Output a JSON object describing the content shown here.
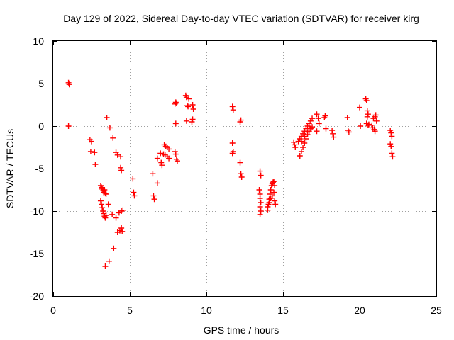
{
  "chart_data": {
    "type": "scatter",
    "title": "Day 129 of 2022, Sidereal Day-to-day VTEC variation (SDTVAR) for receiver kirg",
    "xlabel": "GPS time / hours",
    "ylabel": "SDTVAR / TECUs",
    "xlim": [
      0,
      25
    ],
    "ylim": [
      -20,
      10
    ],
    "xticks": [
      0,
      5,
      10,
      15,
      20,
      25
    ],
    "yticks": [
      -20,
      -15,
      -10,
      -5,
      0,
      5,
      10
    ],
    "grid": true,
    "marker": "plus",
    "series": [
      {
        "name": "SDTVAR",
        "color": "#ff0000",
        "points": [
          [
            1.0,
            5.1
          ],
          [
            1.05,
            4.9
          ],
          [
            1.0,
            0.0
          ],
          [
            2.4,
            -1.6
          ],
          [
            2.5,
            -1.8
          ],
          [
            2.45,
            -3.0
          ],
          [
            2.7,
            -3.1
          ],
          [
            2.75,
            -4.5
          ],
          [
            3.1,
            -7.0
          ],
          [
            3.15,
            -7.2
          ],
          [
            3.2,
            -7.4
          ],
          [
            3.25,
            -7.6
          ],
          [
            3.3,
            -7.8
          ],
          [
            3.35,
            -7.5
          ],
          [
            3.4,
            -7.9
          ],
          [
            3.45,
            -8.0
          ],
          [
            3.1,
            -8.8
          ],
          [
            3.15,
            -9.2
          ],
          [
            3.2,
            -9.6
          ],
          [
            3.25,
            -10.0
          ],
          [
            3.3,
            -10.3
          ],
          [
            3.35,
            -10.6
          ],
          [
            3.4,
            -10.8
          ],
          [
            3.45,
            -10.5
          ],
          [
            3.5,
            1.0
          ],
          [
            3.7,
            -0.2
          ],
          [
            3.9,
            -1.4
          ],
          [
            3.4,
            -16.5
          ],
          [
            3.65,
            -15.9
          ],
          [
            3.95,
            -14.4
          ],
          [
            3.6,
            -9.2
          ],
          [
            3.85,
            -10.4
          ],
          [
            4.1,
            -10.8
          ],
          [
            4.1,
            -3.1
          ],
          [
            4.2,
            -3.4
          ],
          [
            4.4,
            -3.6
          ],
          [
            4.4,
            -4.9
          ],
          [
            4.45,
            -5.2
          ],
          [
            4.2,
            -12.5
          ],
          [
            4.35,
            -12.3
          ],
          [
            4.45,
            -12.0
          ],
          [
            4.5,
            -12.4
          ],
          [
            4.3,
            -10.2
          ],
          [
            4.45,
            -10.0
          ],
          [
            4.55,
            -9.9
          ],
          [
            5.2,
            -6.2
          ],
          [
            5.25,
            -7.8
          ],
          [
            5.3,
            -8.2
          ],
          [
            6.5,
            -5.6
          ],
          [
            6.55,
            -8.2
          ],
          [
            6.6,
            -8.6
          ],
          [
            6.8,
            -6.7
          ],
          [
            6.8,
            -3.8
          ],
          [
            7.0,
            -3.2
          ],
          [
            7.05,
            -4.3
          ],
          [
            7.1,
            -4.6
          ],
          [
            7.2,
            -3.3
          ],
          [
            7.3,
            -3.4
          ],
          [
            7.45,
            -3.6
          ],
          [
            7.55,
            -3.8
          ],
          [
            7.25,
            -2.2
          ],
          [
            7.35,
            -2.4
          ],
          [
            7.45,
            -2.5
          ],
          [
            7.55,
            -2.7
          ],
          [
            7.95,
            -3.0
          ],
          [
            8.0,
            -3.3
          ],
          [
            8.05,
            -3.9
          ],
          [
            8.1,
            -4.1
          ],
          [
            7.95,
            2.6
          ],
          [
            8.0,
            2.8
          ],
          [
            8.05,
            2.7
          ],
          [
            8.0,
            0.3
          ],
          [
            8.65,
            3.6
          ],
          [
            8.7,
            3.4
          ],
          [
            8.75,
            2.4
          ],
          [
            8.8,
            2.3
          ],
          [
            8.7,
            0.6
          ],
          [
            8.85,
            3.2
          ],
          [
            9.1,
            2.5
          ],
          [
            9.15,
            2.0
          ],
          [
            9.05,
            0.5
          ],
          [
            9.1,
            0.8
          ],
          [
            11.7,
            2.3
          ],
          [
            11.75,
            1.9
          ],
          [
            11.7,
            -2.0
          ],
          [
            11.75,
            -3.0
          ],
          [
            11.7,
            -3.2
          ],
          [
            12.2,
            0.5
          ],
          [
            12.25,
            0.7
          ],
          [
            12.2,
            -4.3
          ],
          [
            12.25,
            -5.6
          ],
          [
            12.3,
            -6.0
          ],
          [
            13.5,
            -5.3
          ],
          [
            13.55,
            -5.8
          ],
          [
            13.45,
            -7.5
          ],
          [
            13.5,
            -8.0
          ],
          [
            13.5,
            -8.5
          ],
          [
            13.55,
            -9.0
          ],
          [
            13.5,
            -9.5
          ],
          [
            13.55,
            -10.0
          ],
          [
            13.5,
            -10.4
          ],
          [
            14.0,
            -9.9
          ],
          [
            14.05,
            -9.2
          ],
          [
            14.1,
            -8.6
          ],
          [
            14.15,
            -8.0
          ],
          [
            14.2,
            -7.5
          ],
          [
            14.25,
            -7.0
          ],
          [
            14.3,
            -6.8
          ],
          [
            14.35,
            -6.6
          ],
          [
            14.4,
            -6.5
          ],
          [
            14.0,
            -9.5
          ],
          [
            14.1,
            -9.0
          ],
          [
            14.2,
            -8.5
          ],
          [
            14.3,
            -8.2
          ],
          [
            14.4,
            -7.8
          ],
          [
            14.45,
            -8.8
          ],
          [
            14.5,
            -9.2
          ],
          [
            14.45,
            -7.0
          ],
          [
            15.7,
            -1.9
          ],
          [
            15.75,
            -2.2
          ],
          [
            15.8,
            -2.5
          ],
          [
            16.0,
            -1.8
          ],
          [
            16.1,
            -1.5
          ],
          [
            16.2,
            -1.2
          ],
          [
            16.3,
            -0.9
          ],
          [
            16.4,
            -0.6
          ],
          [
            16.5,
            -0.3
          ],
          [
            16.6,
            0.0
          ],
          [
            16.7,
            0.3
          ],
          [
            16.8,
            0.6
          ],
          [
            16.9,
            0.9
          ],
          [
            16.1,
            -3.5
          ],
          [
            16.2,
            -3.0
          ],
          [
            16.3,
            -2.5
          ],
          [
            16.4,
            -2.0
          ],
          [
            16.5,
            -1.5
          ],
          [
            16.6,
            -1.0
          ],
          [
            16.7,
            -0.6
          ],
          [
            16.8,
            -0.3
          ],
          [
            16.9,
            -0.1
          ],
          [
            16.2,
            -1.8
          ],
          [
            16.4,
            -1.2
          ],
          [
            16.6,
            -0.7
          ],
          [
            17.2,
            1.4
          ],
          [
            17.3,
            0.9
          ],
          [
            17.35,
            0.3
          ],
          [
            17.2,
            -0.6
          ],
          [
            17.7,
            1.0
          ],
          [
            17.75,
            1.2
          ],
          [
            17.8,
            -0.3
          ],
          [
            18.2,
            -0.5
          ],
          [
            18.25,
            -0.9
          ],
          [
            18.3,
            -1.3
          ],
          [
            19.2,
            1.0
          ],
          [
            19.25,
            -0.5
          ],
          [
            19.3,
            -0.7
          ],
          [
            20.0,
            2.2
          ],
          [
            20.05,
            0.0
          ],
          [
            20.4,
            3.2
          ],
          [
            20.45,
            3.0
          ],
          [
            20.5,
            1.8
          ],
          [
            20.55,
            1.4
          ],
          [
            20.5,
            1.1
          ],
          [
            20.45,
            0.3
          ],
          [
            20.55,
            0.1
          ],
          [
            20.6,
            0.2
          ],
          [
            20.8,
            0.1
          ],
          [
            20.85,
            -0.2
          ],
          [
            20.95,
            -0.4
          ],
          [
            21.0,
            -0.6
          ],
          [
            20.9,
            0.9
          ],
          [
            21.0,
            1.1
          ],
          [
            21.05,
            1.3
          ],
          [
            21.1,
            0.6
          ],
          [
            22.0,
            -0.5
          ],
          [
            22.05,
            -0.8
          ],
          [
            22.1,
            -1.2
          ],
          [
            22.0,
            -2.1
          ],
          [
            22.05,
            -2.4
          ],
          [
            22.1,
            -3.2
          ],
          [
            22.15,
            -3.6
          ]
        ]
      }
    ]
  }
}
